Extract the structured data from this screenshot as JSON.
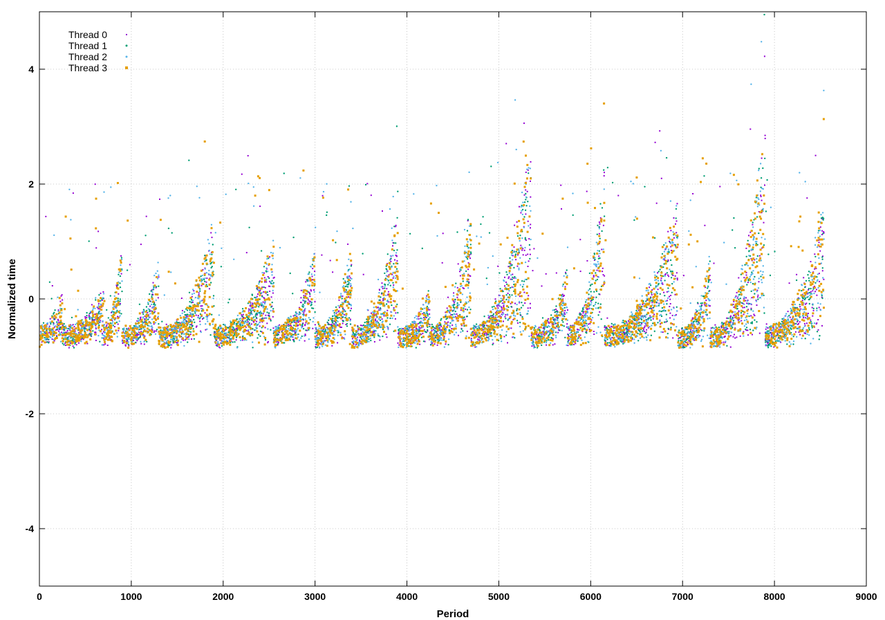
{
  "chart_data": {
    "type": "scatter",
    "title": "",
    "xlabel": "Period",
    "ylabel": "Normalized time",
    "xlim": [
      0,
      9000
    ],
    "ylim": [
      -5,
      5
    ],
    "x_ticks": [
      0,
      1000,
      2000,
      3000,
      4000,
      5000,
      6000,
      7000,
      8000,
      9000
    ],
    "y_ticks": [
      -4,
      -2,
      0,
      2,
      4
    ],
    "grid": true,
    "legend": "top-left",
    "series": [
      {
        "name": "Thread 0",
        "color": "#9400d3",
        "marker": "plus"
      },
      {
        "name": "Thread 1",
        "color": "#009e73",
        "marker": "dot"
      },
      {
        "name": "Thread 2",
        "color": "#56b4e9",
        "marker": "dot"
      },
      {
        "name": "Thread 3",
        "color": "#e69f00",
        "marker": "square"
      }
    ],
    "segments": [
      {
        "range": [
          0,
          250
        ],
        "peak": 0.1,
        "floor": -0.6
      },
      {
        "range": [
          250,
          700
        ],
        "peak": 0.3,
        "floor": -0.65
      },
      {
        "range": [
          700,
          900
        ],
        "peak": 1.4,
        "floor": -0.6
      },
      {
        "range": [
          900,
          1300
        ],
        "peak": 0.9,
        "floor": -0.7
      },
      {
        "range": [
          1300,
          1900
        ],
        "peak": 1.8,
        "floor": -0.7
      },
      {
        "range": [
          1900,
          2550
        ],
        "peak": 1.3,
        "floor": -0.65
      },
      {
        "range": [
          2550,
          3000
        ],
        "peak": 1.2,
        "floor": -0.65
      },
      {
        "range": [
          3000,
          3400
        ],
        "peak": 1.2,
        "floor": -0.7
      },
      {
        "range": [
          3400,
          3900
        ],
        "peak": 2.0,
        "floor": -0.7
      },
      {
        "range": [
          3900,
          4250
        ],
        "peak": 0.3,
        "floor": -0.7
      },
      {
        "range": [
          4250,
          4700
        ],
        "peak": 2.0,
        "floor": -0.65
      },
      {
        "range": [
          4700,
          5350
        ],
        "peak": 3.5,
        "floor": -0.65
      },
      {
        "range": [
          5350,
          5750
        ],
        "peak": 0.7,
        "floor": -0.7
      },
      {
        "range": [
          5750,
          6150
        ],
        "peak": 2.8,
        "floor": -0.65
      },
      {
        "range": [
          6150,
          6950
        ],
        "peak": 2.2,
        "floor": -0.65
      },
      {
        "range": [
          6950,
          7300
        ],
        "peak": 1.0,
        "floor": -0.75
      },
      {
        "range": [
          7300,
          7900
        ],
        "peak": 3.8,
        "floor": -0.7
      },
      {
        "range": [
          7900,
          8550
        ],
        "peak": 2.2,
        "floor": -0.65
      }
    ]
  }
}
